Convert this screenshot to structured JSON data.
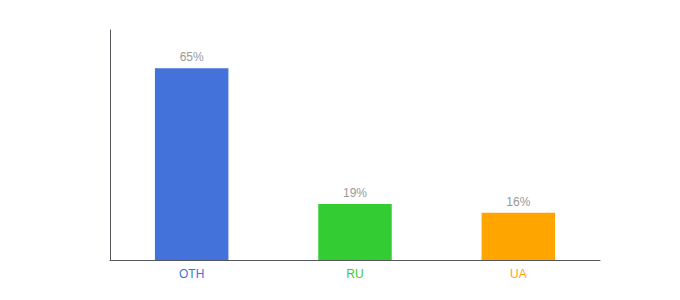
{
  "chart_data": {
    "type": "bar",
    "categories": [
      "OTH",
      "RU",
      "UA"
    ],
    "values": [
      65,
      19,
      16
    ],
    "value_labels": [
      "65%",
      "19%",
      "16%"
    ],
    "data_labels": true,
    "colors": [
      "#4472DB",
      "#33CC33",
      "#FFA500"
    ],
    "ylim": [
      0,
      78
    ],
    "grid": false,
    "tick_labels": "x"
  }
}
